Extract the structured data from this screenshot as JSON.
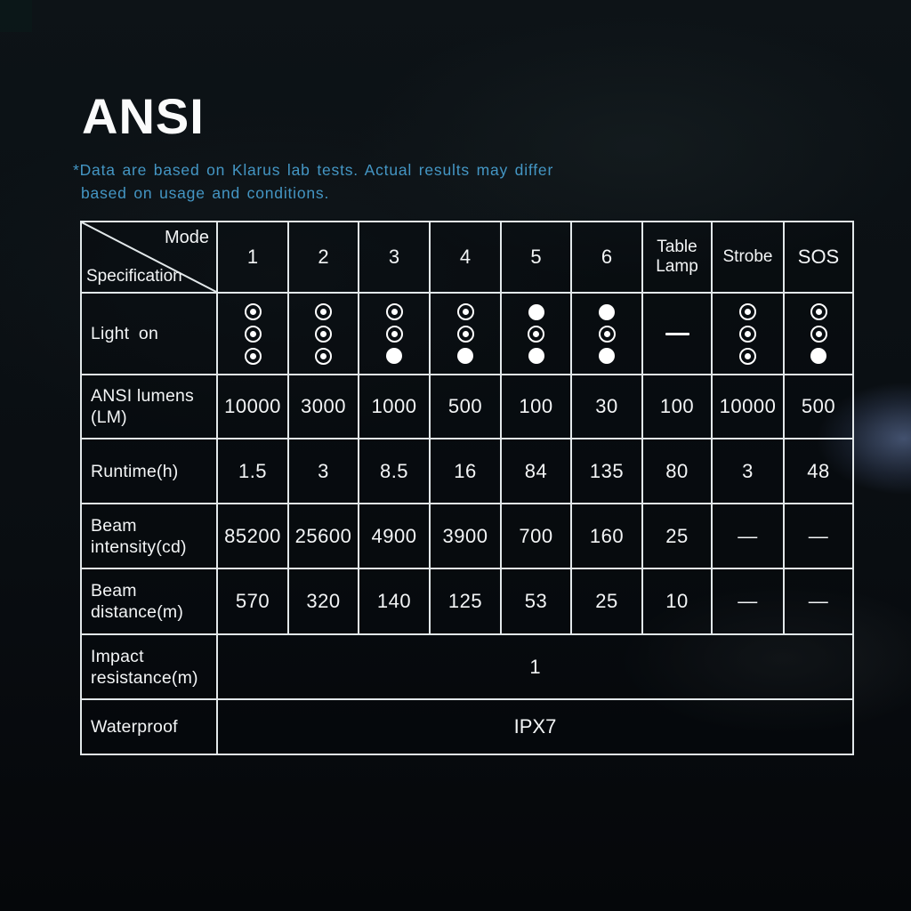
{
  "page": {
    "title": "ANSI",
    "note_line1": "*Data are based on Klarus lab tests. Actual results may differ",
    "note_line2": "based on usage and conditions.",
    "note_color": "#4496c4"
  },
  "table": {
    "corner": {
      "top_right": "Mode",
      "bottom_left": "Specification"
    },
    "columns": [
      "1",
      "2",
      "3",
      "4",
      "5",
      "6",
      "Table Lamp",
      "Strobe",
      "SOS"
    ],
    "light_on": {
      "label": "Light on",
      "patterns": [
        [
          "ring",
          "ring",
          "ring"
        ],
        [
          "ring",
          "ring",
          "ring"
        ],
        [
          "ring",
          "ring",
          "filled"
        ],
        [
          "ring",
          "ring",
          "filled"
        ],
        [
          "filled",
          "ring",
          "filled"
        ],
        [
          "filled",
          "ring",
          "filled"
        ],
        [
          "dash"
        ],
        [
          "ring",
          "ring",
          "ring"
        ],
        [
          "ring",
          "ring",
          "filled"
        ]
      ]
    },
    "rows": [
      {
        "key": "ansi-lumens",
        "label": "ANSI lumens (LM)",
        "values": [
          "10000",
          "3000",
          "1000",
          "500",
          "100",
          "30",
          "100",
          "10000",
          "500"
        ]
      },
      {
        "key": "runtime",
        "label": "Runtime(h)",
        "values": [
          "1.5",
          "3",
          "8.5",
          "16",
          "84",
          "135",
          "80",
          "3",
          "48"
        ]
      },
      {
        "key": "beam-intensity",
        "label": "Beam intensity(cd)",
        "values": [
          "85200",
          "25600",
          "4900",
          "3900",
          "700",
          "160",
          "25",
          "—",
          "—"
        ]
      },
      {
        "key": "beam-distance",
        "label": "Beam distance(m)",
        "values": [
          "570",
          "320",
          "140",
          "125",
          "53",
          "25",
          "10",
          "—",
          "—"
        ]
      }
    ],
    "span_rows": [
      {
        "key": "impact-resistance",
        "label": "Impact resistance(m)",
        "value": "1"
      },
      {
        "key": "waterproof",
        "label": "Waterproof",
        "value": "IPX7"
      }
    ]
  }
}
